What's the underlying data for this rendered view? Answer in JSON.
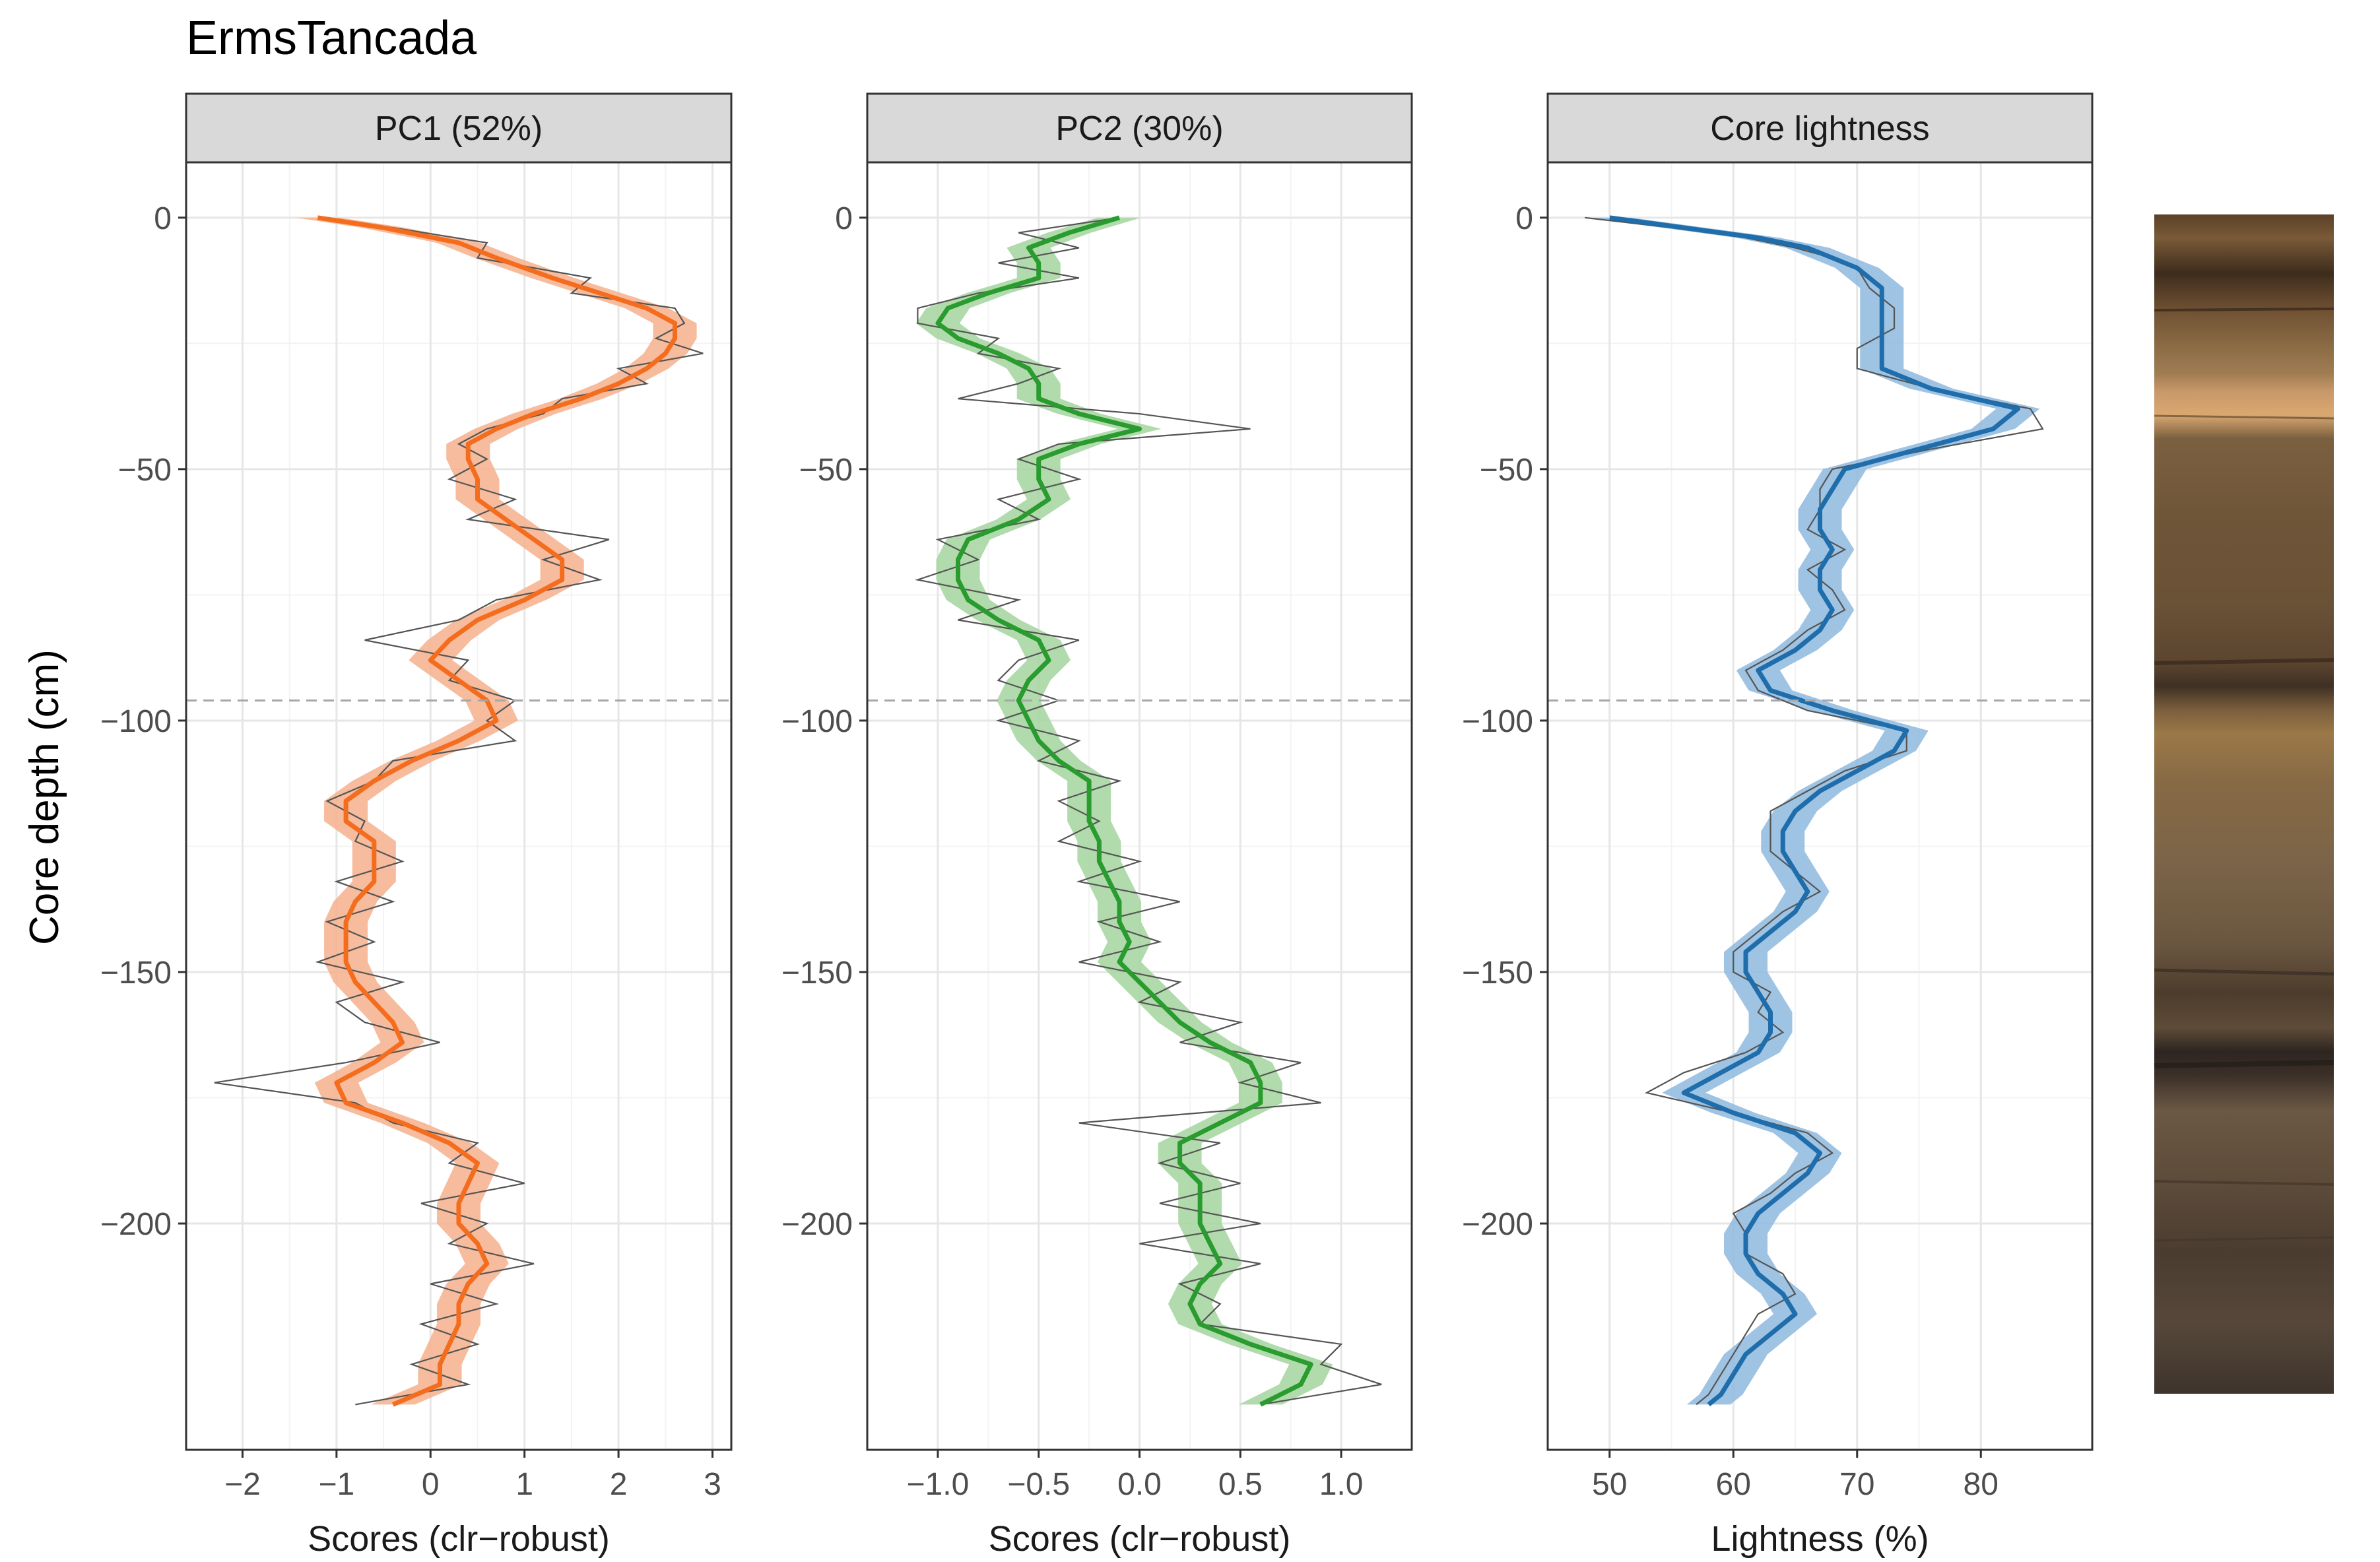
{
  "figure": {
    "title": "ErmsTancada",
    "ylabel": "Core depth (cm)",
    "reference_depth": -96
  },
  "chart_data": [
    {
      "type": "line",
      "panel_title": "PC1 (52%)",
      "xlabel": "Scores (clr−robust)",
      "xlim": [
        -2.6,
        3.2
      ],
      "ylim": [
        -245,
        11
      ],
      "xticks": [
        -2,
        -1,
        0,
        1,
        2,
        3
      ],
      "xtick_labels": [
        "−2",
        "−1",
        "0",
        "1",
        "2",
        "3"
      ],
      "yticks": [
        0,
        -50,
        -100,
        -150,
        -200
      ],
      "ytick_labels": [
        "0",
        "−50",
        "−100",
        "−150",
        "−200"
      ],
      "grid": true,
      "line_color": "#F46D1E",
      "band_color": "#F5B08C",
      "depth": [
        0,
        -2,
        -5,
        -8,
        -12,
        -15,
        -18,
        -21,
        -24,
        -27,
        -30,
        -33,
        -36,
        -39,
        -42,
        -45,
        -48,
        -52,
        -56,
        -60,
        -64,
        -68,
        -72,
        -76,
        -80,
        -84,
        -88,
        -92,
        -96,
        -100,
        -104,
        -108,
        -112,
        -116,
        -120,
        -124,
        -128,
        -132,
        -136,
        -140,
        -144,
        -148,
        -152,
        -156,
        -160,
        -164,
        -168,
        -172,
        -176,
        -180,
        -184,
        -188,
        -192,
        -196,
        -200,
        -204,
        -208,
        -212,
        -216,
        -220,
        -224,
        -228,
        -232,
        -236
      ],
      "smooth": [
        -1.2,
        -0.5,
        0.3,
        0.7,
        1.3,
        1.8,
        2.3,
        2.6,
        2.6,
        2.5,
        2.3,
        2.0,
        1.6,
        1.1,
        0.7,
        0.4,
        0.4,
        0.5,
        0.5,
        0.8,
        1.1,
        1.4,
        1.4,
        1.0,
        0.5,
        0.2,
        0.0,
        0.3,
        0.6,
        0.7,
        0.3,
        -0.2,
        -0.6,
        -0.9,
        -0.9,
        -0.6,
        -0.6,
        -0.6,
        -0.8,
        -0.9,
        -0.9,
        -0.9,
        -0.8,
        -0.6,
        -0.4,
        -0.3,
        -0.6,
        -1.0,
        -0.9,
        -0.3,
        0.2,
        0.5,
        0.4,
        0.3,
        0.3,
        0.5,
        0.6,
        0.4,
        0.3,
        0.3,
        0.2,
        0.1,
        0.1,
        -0.4
      ],
      "raw": [
        -1.2,
        -0.4,
        0.6,
        0.5,
        1.7,
        1.5,
        2.6,
        2.7,
        2.4,
        2.9,
        2.0,
        2.3,
        1.4,
        1.2,
        0.6,
        0.3,
        0.6,
        0.2,
        0.9,
        0.4,
        1.9,
        1.2,
        1.8,
        0.7,
        0.3,
        -0.7,
        0.4,
        0.2,
        0.9,
        0.6,
        0.9,
        -0.4,
        -0.6,
        -1.1,
        -0.7,
        -0.8,
        -0.3,
        -1.0,
        -0.4,
        -1.1,
        -0.6,
        -1.2,
        -0.3,
        -1.0,
        -0.7,
        0.1,
        -0.9,
        -2.3,
        -0.8,
        -0.4,
        0.5,
        0.2,
        1.0,
        -0.1,
        0.6,
        0.2,
        1.1,
        0.0,
        0.7,
        -0.1,
        0.5,
        -0.2,
        0.4,
        -0.8
      ]
    },
    {
      "type": "line",
      "panel_title": "PC2 (30%)",
      "xlabel": "Scores (clr−robust)",
      "xlim": [
        -1.35,
        1.35
      ],
      "ylim": [
        -245,
        11
      ],
      "xticks": [
        -1.0,
        -0.5,
        0.0,
        0.5,
        1.0
      ],
      "xtick_labels": [
        "−1.0",
        "−0.5",
        "0.0",
        "0.5",
        "1.0"
      ],
      "yticks": [
        0,
        -50,
        -100,
        -150,
        -200
      ],
      "ytick_labels": [
        "0",
        "−50",
        "−100",
        "−150",
        "−200"
      ],
      "grid": true,
      "line_color": "#2A9C2F",
      "band_color": "#A3D59E",
      "depth": [
        0,
        -3,
        -6,
        -9,
        -12,
        -15,
        -18,
        -21,
        -24,
        -27,
        -30,
        -33,
        -36,
        -39,
        -42,
        -45,
        -48,
        -52,
        -56,
        -60,
        -64,
        -68,
        -72,
        -76,
        -80,
        -84,
        -88,
        -92,
        -96,
        -100,
        -104,
        -108,
        -112,
        -116,
        -120,
        -124,
        -128,
        -132,
        -136,
        -140,
        -144,
        -148,
        -152,
        -156,
        -160,
        -164,
        -168,
        -172,
        -176,
        -180,
        -184,
        -188,
        -192,
        -196,
        -200,
        -204,
        -208,
        -212,
        -216,
        -220,
        -224,
        -228,
        -232,
        -236
      ],
      "smooth": [
        -0.1,
        -0.35,
        -0.55,
        -0.5,
        -0.5,
        -0.75,
        -0.95,
        -1.0,
        -0.9,
        -0.7,
        -0.55,
        -0.5,
        -0.5,
        -0.3,
        0.0,
        -0.3,
        -0.5,
        -0.5,
        -0.45,
        -0.6,
        -0.85,
        -0.9,
        -0.9,
        -0.85,
        -0.7,
        -0.5,
        -0.45,
        -0.55,
        -0.6,
        -0.55,
        -0.5,
        -0.4,
        -0.25,
        -0.25,
        -0.25,
        -0.2,
        -0.2,
        -0.15,
        -0.1,
        -0.1,
        -0.05,
        -0.1,
        0.0,
        0.1,
        0.2,
        0.35,
        0.55,
        0.6,
        0.6,
        0.4,
        0.2,
        0.2,
        0.3,
        0.3,
        0.3,
        0.35,
        0.4,
        0.3,
        0.25,
        0.3,
        0.55,
        0.85,
        0.8,
        0.6
      ],
      "raw": [
        -0.1,
        -0.6,
        -0.3,
        -0.7,
        -0.3,
        -0.8,
        -1.1,
        -1.1,
        -0.7,
        -0.8,
        -0.4,
        -0.6,
        -0.9,
        0.0,
        0.55,
        -0.4,
        -0.6,
        -0.3,
        -0.7,
        -0.5,
        -1.0,
        -0.8,
        -1.1,
        -0.6,
        -0.9,
        -0.3,
        -0.6,
        -0.7,
        -0.4,
        -0.7,
        -0.3,
        -0.5,
        -0.1,
        -0.4,
        -0.2,
        -0.4,
        0.0,
        -0.3,
        0.2,
        -0.2,
        0.1,
        -0.3,
        0.2,
        0.0,
        0.5,
        0.2,
        0.8,
        0.5,
        0.9,
        -0.3,
        0.4,
        0.1,
        0.5,
        0.1,
        0.6,
        0.0,
        0.6,
        0.2,
        0.4,
        0.3,
        1.0,
        0.9,
        1.2,
        0.6
      ]
    },
    {
      "type": "line",
      "panel_title": "Core lightness",
      "xlabel": "Lightness (%)",
      "xlim": [
        45,
        89
      ],
      "ylim": [
        -245,
        11
      ],
      "xticks": [
        50,
        60,
        70,
        80
      ],
      "xtick_labels": [
        "50",
        "60",
        "70",
        "80"
      ],
      "yticks": [
        0,
        -50,
        -100,
        -150,
        -200
      ],
      "ytick_labels": [
        "0",
        "−50",
        "−100",
        "−150",
        "−200"
      ],
      "grid": true,
      "line_color": "#1F6DAB",
      "band_color": "#8EB9DE",
      "depth": [
        0,
        -2,
        -4,
        -6,
        -8,
        -10,
        -14,
        -18,
        -22,
        -26,
        -30,
        -34,
        -38,
        -42,
        -46,
        -50,
        -54,
        -58,
        -62,
        -66,
        -70,
        -74,
        -78,
        -82,
        -86,
        -90,
        -94,
        -98,
        -102,
        -106,
        -110,
        -114,
        -118,
        -122,
        -126,
        -130,
        -134,
        -138,
        -142,
        -146,
        -150,
        -154,
        -158,
        -162,
        -166,
        -170,
        -174,
        -178,
        -182,
        -186,
        -190,
        -194,
        -198,
        -202,
        -206,
        -210,
        -214,
        -218,
        -222,
        -226,
        -230,
        -234,
        -236
      ],
      "smooth": [
        50,
        56,
        62,
        66,
        68,
        70,
        72,
        72,
        72,
        72,
        72,
        76,
        83,
        81,
        75,
        69,
        68,
        67,
        67,
        68,
        67,
        67,
        68,
        67,
        65,
        62,
        63,
        68,
        74,
        73,
        70,
        67,
        65,
        64,
        64,
        65,
        66,
        65,
        63,
        61,
        61,
        62,
        63,
        63,
        62,
        59,
        56,
        60,
        65,
        67,
        66,
        64,
        62,
        61,
        61,
        62,
        64,
        65,
        63,
        61,
        60,
        59,
        58
      ],
      "raw": [
        48,
        55,
        61,
        65,
        68,
        70,
        71,
        73,
        73,
        70,
        70,
        76,
        84,
        85,
        76,
        68,
        67,
        67,
        66,
        69,
        66,
        68,
        69,
        66,
        64,
        61,
        62,
        66,
        74,
        74,
        69,
        66,
        63,
        63,
        63,
        65,
        67,
        64,
        62,
        60,
        60,
        63,
        62,
        64,
        61,
        56,
        53,
        60,
        66,
        68,
        65,
        63,
        60,
        61,
        61,
        64,
        65,
        62,
        61,
        60,
        59,
        58,
        57
      ]
    }
  ]
}
